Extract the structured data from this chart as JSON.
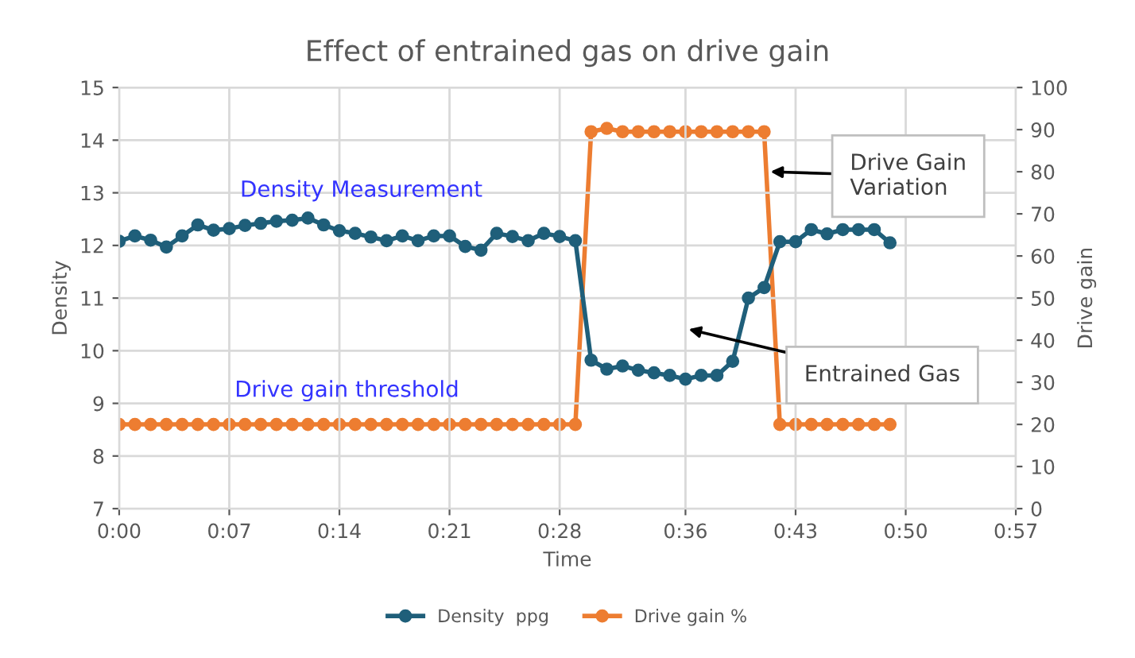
{
  "chart_data": {
    "type": "line",
    "title": "Effect of entrained gas on drive gain",
    "xlabel": "Time",
    "ylabel": "Density",
    "y2label": "Drive gain",
    "x": [
      0,
      0.016667,
      0.033333,
      0.05,
      0.066667,
      0.083333,
      0.1,
      0.116667,
      0.133333,
      0.15,
      0.166667,
      0.183333,
      0.2,
      0.216667,
      0.233333,
      0.25,
      0.266667,
      0.283333,
      0.3,
      0.316667,
      0.333333,
      0.35,
      0.366667,
      0.383333,
      0.4,
      0.416667,
      0.433333,
      0.45,
      0.466667,
      0.483333,
      0.5,
      0.516667,
      0.533333,
      0.55,
      0.566667,
      0.583333,
      0.6,
      0.616667,
      0.633333,
      0.65,
      0.666667,
      0.683333,
      0.7,
      0.716667,
      0.733333,
      0.75,
      0.766667,
      0.783333,
      0.8,
      0.816667
    ],
    "series": [
      {
        "name": "Density  ppg",
        "color": "#1f5f7a",
        "values": [
          12.08,
          12.18,
          12.1,
          11.97,
          12.18,
          12.39,
          12.29,
          12.32,
          12.38,
          12.42,
          12.46,
          12.48,
          12.52,
          12.39,
          12.28,
          12.23,
          12.16,
          12.09,
          12.18,
          12.09,
          12.18,
          12.18,
          11.98,
          11.91,
          12.23,
          12.17,
          12.09,
          12.23,
          12.17,
          12.09,
          9.82,
          9.65,
          9.71,
          9.63,
          9.58,
          9.53,
          9.46,
          9.53,
          9.53,
          9.8,
          11.0,
          11.2,
          12.07,
          12.07,
          12.3,
          12.22,
          12.3,
          12.3,
          12.3,
          12.05
        ]
      },
      {
        "name": "Drive gain %",
        "color": "#ed7d31",
        "axis": "y2",
        "values": [
          20,
          20,
          20,
          20,
          20,
          20,
          20,
          20,
          20,
          20,
          20,
          20,
          20,
          20,
          20,
          20,
          20,
          20,
          20,
          20,
          20,
          20,
          20,
          20,
          20,
          20,
          20,
          20,
          20,
          20,
          89.5,
          90.3,
          89.5,
          89.5,
          89.5,
          89.5,
          89.5,
          89.5,
          89.5,
          89.5,
          89.5,
          89.5,
          20,
          20,
          20,
          20,
          20,
          20,
          20,
          20
        ]
      }
    ],
    "xlim": [
      0,
      0.95
    ],
    "xticks": [
      {
        "value": 0,
        "label": "0:00"
      },
      {
        "value": 0.116667,
        "label": "0:07"
      },
      {
        "value": 0.233333,
        "label": "0:14"
      },
      {
        "value": 0.35,
        "label": "0:21"
      },
      {
        "value": 0.466667,
        "label": "0:28"
      },
      {
        "value": 0.6,
        "label": "0:36"
      },
      {
        "value": 0.716667,
        "label": "0:43"
      },
      {
        "value": 0.833333,
        "label": "0:50"
      },
      {
        "value": 0.95,
        "label": "0:57"
      }
    ],
    "ylim": [
      7,
      15
    ],
    "yticks": [
      7,
      8,
      9,
      10,
      11,
      12,
      13,
      14,
      15
    ],
    "y2lim": [
      0,
      100
    ],
    "y2ticks": [
      0,
      10,
      20,
      30,
      40,
      50,
      60,
      70,
      80,
      90,
      100
    ],
    "annotations": [
      "Density Measurement",
      "Drive gain threshold",
      {
        "text": "Drive Gain Variation",
        "x": 0.69,
        "y": 13.4
      },
      "Entrained Gas"
    ],
    "grid": true,
    "legend": "bottom",
    "marker": "circle",
    "line_style": "solid"
  }
}
